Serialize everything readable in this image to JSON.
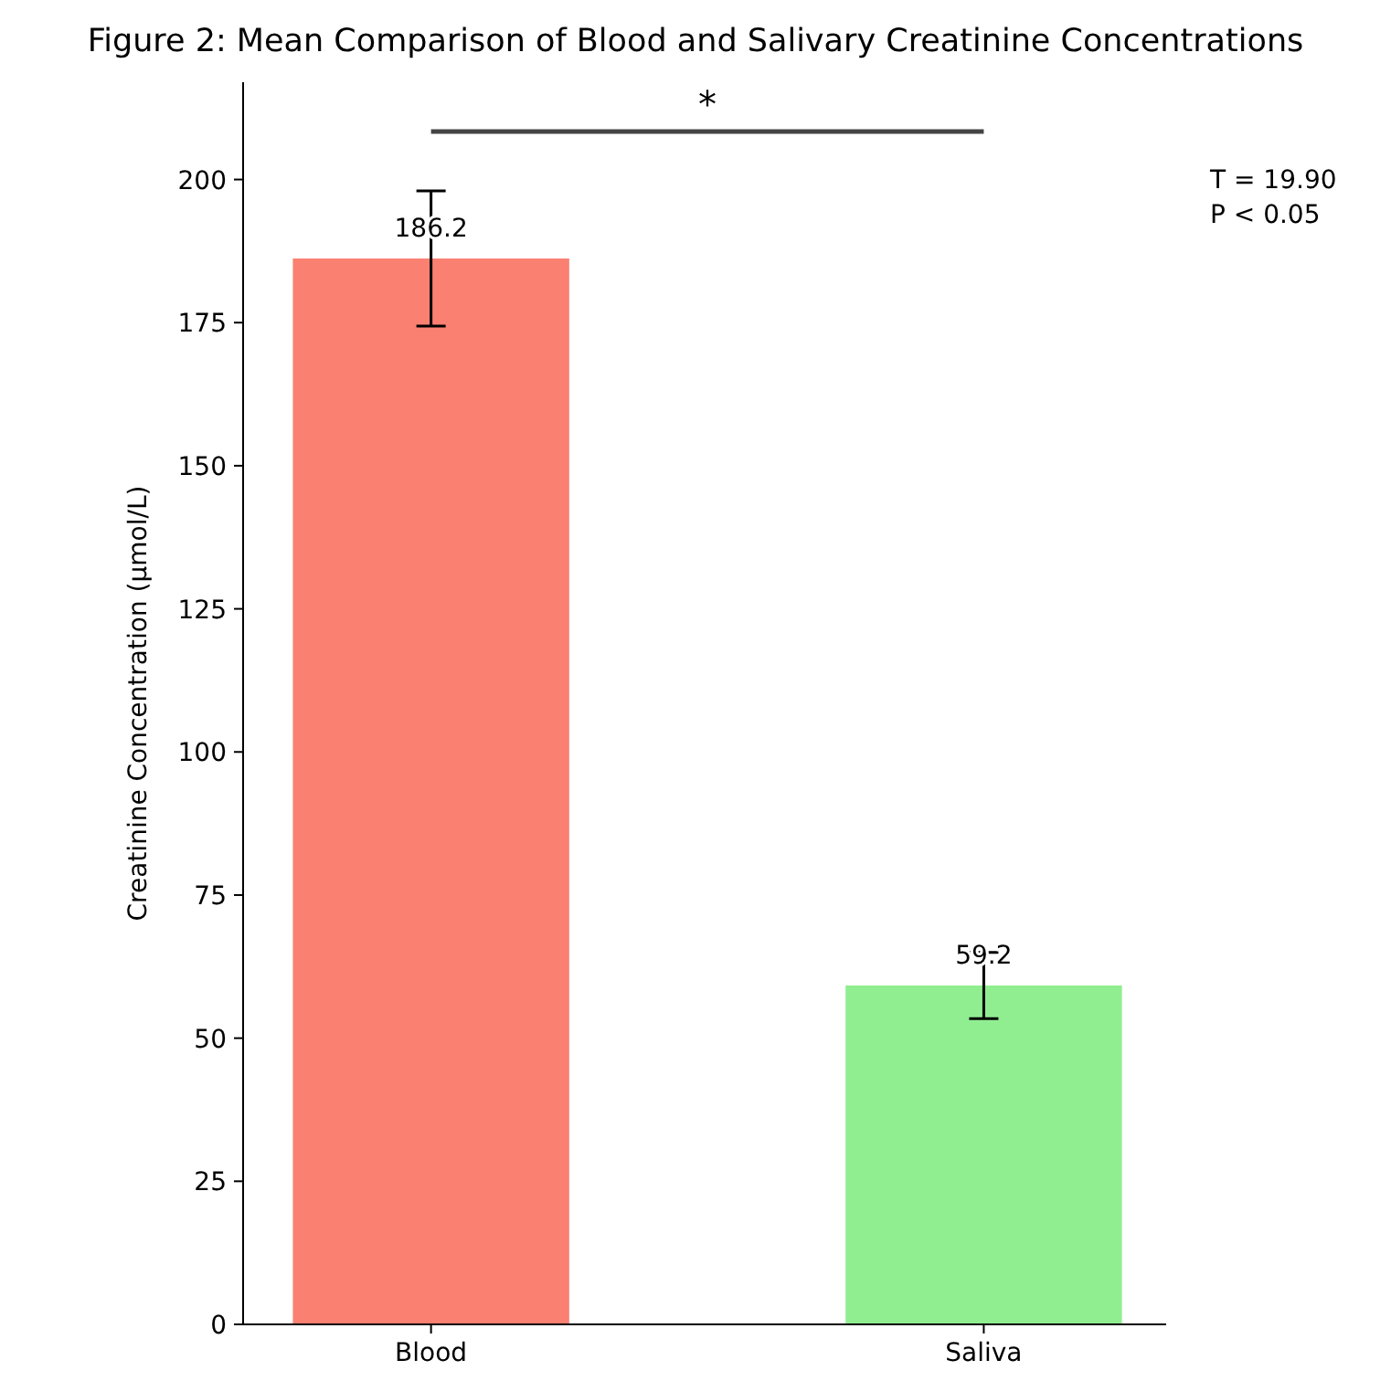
{
  "chart_data": {
    "type": "bar",
    "title": "Figure 2: Mean Comparison of Blood and Salivary Creatinine Concentrations",
    "ylabel": "Creatinine Concentration (µmol/L)",
    "categories": [
      "Blood",
      "Saliva"
    ],
    "values": [
      186.2,
      59.2
    ],
    "colors": [
      "#fa8072",
      "#90ee90"
    ],
    "errors": [
      11.8,
      5.8
    ],
    "data_labels": true,
    "ylim": [
      0,
      217
    ],
    "yticks": [
      0,
      25,
      50,
      75,
      100,
      125,
      150,
      175,
      200
    ],
    "annotations": [
      "*",
      "T = 19.90",
      "P < 0.05"
    ]
  }
}
